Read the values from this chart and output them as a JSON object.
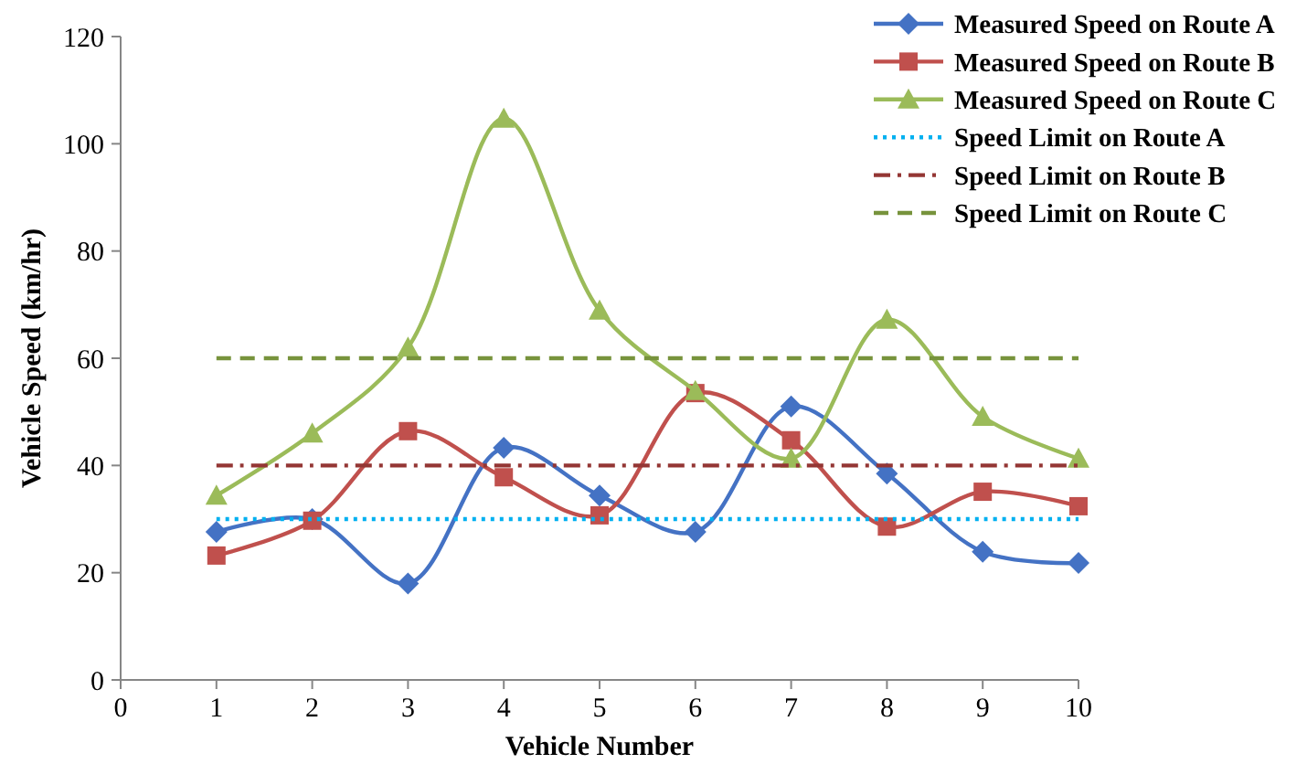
{
  "chart_data": {
    "type": "line",
    "xlabel": "Vehicle Number",
    "ylabel": "Vehicle Speed (km/hr)",
    "x": [
      1,
      2,
      3,
      4,
      5,
      6,
      7,
      8,
      9,
      10
    ],
    "xlim": [
      0,
      10
    ],
    "xticks": [
      0,
      1,
      2,
      3,
      4,
      5,
      6,
      7,
      8,
      9,
      10
    ],
    "ylim": [
      0,
      120
    ],
    "yticks": [
      0,
      20,
      40,
      60,
      80,
      100,
      120
    ],
    "grid": false,
    "legend": "top right",
    "series": [
      {
        "name": "Measured Speed on Route A",
        "color": "#4472c4",
        "marker": "diamond",
        "line_style": "solid",
        "values": [
          27.6,
          30,
          18,
          43.3,
          34.4,
          27.6,
          51,
          38.5,
          23.9,
          21.8
        ]
      },
      {
        "name": "Measured Speed on Route B",
        "color": "#c0504d",
        "marker": "square",
        "line_style": "solid",
        "values": [
          23.2,
          29.7,
          46.4,
          37.8,
          30.7,
          53.5,
          44.7,
          28.6,
          35.1,
          32.4
        ]
      },
      {
        "name": "Measured Speed on Route C",
        "color": "#9bbb59",
        "marker": "triangle",
        "line_style": "solid",
        "values": [
          34.4,
          46,
          62,
          104.7,
          68.9,
          53.9,
          41.3,
          67.2,
          49.1,
          41.3
        ]
      },
      {
        "name": "Speed Limit on Route A",
        "color": "#00b0f0",
        "marker": "none",
        "line_style": "dotted",
        "values": [
          30,
          30,
          30,
          30,
          30,
          30,
          30,
          30,
          30,
          30
        ]
      },
      {
        "name": "Speed Limit on Route B",
        "color": "#943634",
        "marker": "none",
        "line_style": "dashdot",
        "values": [
          40,
          40,
          40,
          40,
          40,
          40,
          40,
          40,
          40,
          40
        ]
      },
      {
        "name": "Speed Limit on Route C",
        "color": "#77933c",
        "marker": "none",
        "line_style": "dashed",
        "values": [
          60,
          60,
          60,
          60,
          60,
          60,
          60,
          60,
          60,
          60
        ]
      }
    ]
  }
}
